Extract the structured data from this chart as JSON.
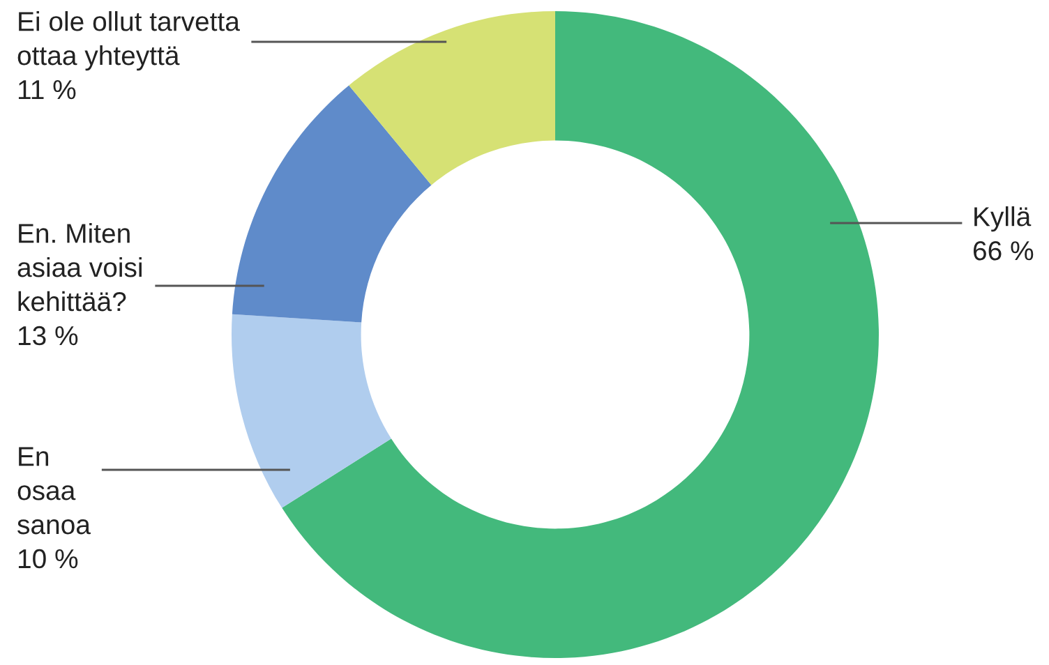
{
  "chart_data": {
    "type": "donut",
    "categories": [
      "Kyllä",
      "En\nosaa\nsanoa",
      "En. Miten\nasiaa voisi\nkehittää?",
      "Ei ole ollut tarvetta\nottaa yhteyttä"
    ],
    "values": [
      66,
      10,
      13,
      11
    ],
    "value_labels": [
      "66 %",
      "10 %",
      "13 %",
      "11 %"
    ],
    "colors": [
      "#43b97c",
      "#b0cdee",
      "#5f8bca",
      "#d6e174"
    ],
    "legend": false
  }
}
